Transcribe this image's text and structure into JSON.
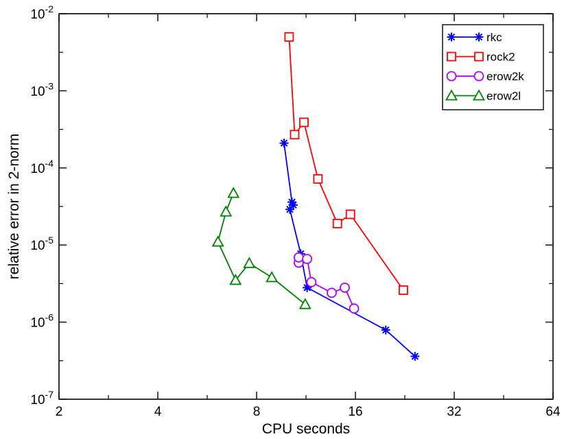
{
  "chart_data": {
    "type": "line",
    "xlabel": "CPU seconds",
    "ylabel": "relative error in 2-norm",
    "x_scale": "log2",
    "y_scale": "log10",
    "xlim": [
      2,
      64
    ],
    "ylim": [
      1e-07,
      0.01
    ],
    "x_ticks": [
      {
        "value": 2,
        "label": "2"
      },
      {
        "value": 4,
        "label": "4"
      },
      {
        "value": 8,
        "label": "8"
      },
      {
        "value": 16,
        "label": "16"
      },
      {
        "value": 32,
        "label": "32"
      },
      {
        "value": 64,
        "label": "64"
      }
    ],
    "y_ticks": [
      {
        "value": 1e-07,
        "base": "10",
        "exp": "-7"
      },
      {
        "value": 1e-06,
        "base": "10",
        "exp": "-6"
      },
      {
        "value": 1e-05,
        "base": "10",
        "exp": "-5"
      },
      {
        "value": 0.0001,
        "base": "10",
        "exp": "-4"
      },
      {
        "value": 0.001,
        "base": "10",
        "exp": "-3"
      },
      {
        "value": 0.01,
        "base": "10",
        "exp": "-2"
      }
    ],
    "grid": false,
    "legend_position": "top-right",
    "series": [
      {
        "name": "rkc",
        "color": "#0000ff",
        "marker": "star",
        "x": [
          9.7,
          10.25,
          10.35,
          10.1,
          10.9,
          11.4,
          19.8,
          24.3
        ],
        "y": [
          0.00021,
          3.6e-05,
          3.3e-05,
          2.9e-05,
          7.7e-06,
          2.8e-06,
          7.9e-07,
          3.6e-07
        ]
      },
      {
        "name": "rock2",
        "color": "#ff0000",
        "marker": "square",
        "x": [
          10.05,
          10.45,
          11.15,
          12.3,
          14.1,
          15.45,
          22.4
        ],
        "y": [
          0.005,
          0.00027,
          0.00039,
          7.2e-05,
          1.9e-05,
          2.5e-05,
          2.6e-06
        ]
      },
      {
        "name": "erow2k",
        "color": "#aa00ff",
        "marker": "circle",
        "x": [
          10.75,
          10.75,
          11.4,
          11.75,
          13.55,
          14.85,
          15.85
        ],
        "y": [
          5.9e-06,
          6.9e-06,
          6.6e-06,
          3.3e-06,
          2.4e-06,
          2.8e-06,
          1.5e-06
        ]
      },
      {
        "name": "erow2l",
        "color": "#008000",
        "marker": "triangle",
        "x": [
          6.8,
          6.45,
          6.1,
          6.9,
          7.6,
          8.9,
          11.25
        ],
        "y": [
          4.7e-05,
          2.7e-05,
          1.1e-05,
          3.5e-06,
          5.8e-06,
          3.8e-06,
          1.7e-06
        ]
      }
    ]
  }
}
